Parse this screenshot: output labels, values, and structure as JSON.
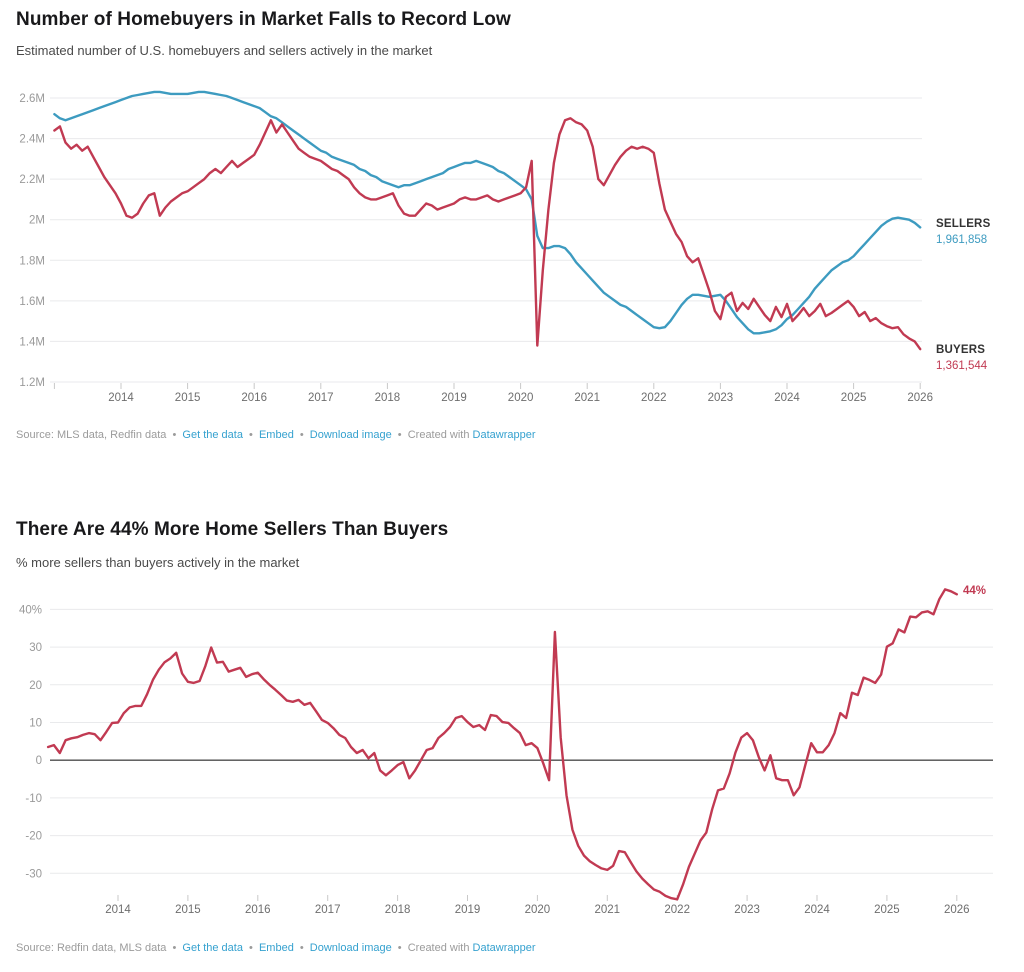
{
  "colors": {
    "sellers_line": "#3d9bc0",
    "buyers_line": "#c13a52",
    "grid": "#e9eaec",
    "zero_axis": "#4d4d4d",
    "axis_tick": "#c9c9c9",
    "y_label": "#9a9a9a",
    "x_label": "#6e6e6e",
    "link_blue": "#35a1cf",
    "title_text": "#19191b",
    "subtitle_text": "#4a4a4a"
  },
  "footers": {
    "sep": "•",
    "chart1": {
      "source": "Source: MLS data, Redfin data",
      "get_data": "Get the data",
      "embed": "Embed",
      "download": "Download image",
      "created_with": "Created with",
      "brand": "Datawrapper"
    },
    "chart2": {
      "source": "Source: Redfin data, MLS data",
      "get_data": "Get the data",
      "embed": "Embed",
      "download": "Download image",
      "created_with": "Created with",
      "brand": "Datawrapper"
    }
  },
  "chart_data": [
    {
      "type": "line",
      "title": "Number of Homebuyers in Market Falls to Record Low",
      "subtitle": "Estimated number of U.S. homebuyers and sellers actively in the market",
      "x_start": 2013.0,
      "x_step_years": 0.08333,
      "xlim": [
        2013.0,
        2026.05
      ],
      "ylim": [
        1.2,
        2.6
      ],
      "grid": true,
      "x_tick_years": [
        2013,
        2014,
        2015,
        2016,
        2017,
        2018,
        2019,
        2020,
        2021,
        2022,
        2023,
        2024,
        2025,
        2026
      ],
      "x_label_years": [
        2014,
        2015,
        2016,
        2017,
        2018,
        2019,
        2020,
        2021,
        2022,
        2023,
        2024,
        2025,
        2026
      ],
      "y_ticks": [
        {
          "value": 2.6,
          "label": "2.6M"
        },
        {
          "value": 2.4,
          "label": "2.4M"
        },
        {
          "value": 2.2,
          "label": "2.2M"
        },
        {
          "value": 2.0,
          "label": "2M"
        },
        {
          "value": 1.8,
          "label": "1.8M"
        },
        {
          "value": 1.6,
          "label": "1.6M"
        },
        {
          "value": 1.4,
          "label": "1.4M"
        },
        {
          "value": 1.2,
          "label": "1.2M"
        }
      ],
      "unit": "millions of people",
      "series": [
        {
          "id": "sellers",
          "name": "SELLERS",
          "color": "#3d9bc0",
          "end_label": "1,961,858",
          "values": [
            2.52,
            2.5,
            2.49,
            2.5,
            2.51,
            2.52,
            2.53,
            2.54,
            2.55,
            2.56,
            2.57,
            2.58,
            2.59,
            2.6,
            2.61,
            2.615,
            2.62,
            2.625,
            2.63,
            2.63,
            2.625,
            2.62,
            2.62,
            2.62,
            2.62,
            2.625,
            2.63,
            2.63,
            2.625,
            2.62,
            2.615,
            2.61,
            2.6,
            2.59,
            2.58,
            2.57,
            2.56,
            2.55,
            2.53,
            2.51,
            2.5,
            2.48,
            2.46,
            2.44,
            2.42,
            2.4,
            2.38,
            2.36,
            2.34,
            2.33,
            2.31,
            2.3,
            2.29,
            2.28,
            2.27,
            2.25,
            2.24,
            2.22,
            2.21,
            2.19,
            2.18,
            2.17,
            2.16,
            2.17,
            2.17,
            2.18,
            2.19,
            2.2,
            2.21,
            2.22,
            2.23,
            2.25,
            2.26,
            2.27,
            2.28,
            2.28,
            2.29,
            2.28,
            2.27,
            2.26,
            2.24,
            2.23,
            2.21,
            2.19,
            2.17,
            2.15,
            2.1,
            1.92,
            1.86,
            1.86,
            1.87,
            1.87,
            1.86,
            1.83,
            1.79,
            1.76,
            1.73,
            1.7,
            1.67,
            1.64,
            1.62,
            1.6,
            1.58,
            1.57,
            1.55,
            1.53,
            1.51,
            1.49,
            1.47,
            1.465,
            1.47,
            1.5,
            1.54,
            1.58,
            1.61,
            1.63,
            1.63,
            1.625,
            1.62,
            1.625,
            1.63,
            1.6,
            1.56,
            1.52,
            1.49,
            1.46,
            1.44,
            1.44,
            1.445,
            1.45,
            1.46,
            1.48,
            1.51,
            1.53,
            1.56,
            1.59,
            1.62,
            1.66,
            1.69,
            1.72,
            1.75,
            1.77,
            1.79,
            1.8,
            1.82,
            1.85,
            1.88,
            1.91,
            1.94,
            1.97,
            1.99,
            2.005,
            2.01,
            2.005,
            2.0,
            1.985,
            1.962
          ]
        },
        {
          "id": "buyers",
          "name": "BUYERS",
          "color": "#c13a52",
          "end_label": "1,361,544",
          "values": [
            2.44,
            2.46,
            2.38,
            2.35,
            2.37,
            2.34,
            2.36,
            2.31,
            2.26,
            2.21,
            2.17,
            2.13,
            2.08,
            2.02,
            2.01,
            2.03,
            2.08,
            2.12,
            2.13,
            2.02,
            2.06,
            2.09,
            2.11,
            2.13,
            2.14,
            2.16,
            2.18,
            2.2,
            2.23,
            2.25,
            2.23,
            2.26,
            2.29,
            2.26,
            2.28,
            2.3,
            2.32,
            2.37,
            2.43,
            2.49,
            2.43,
            2.47,
            2.43,
            2.39,
            2.35,
            2.33,
            2.31,
            2.3,
            2.29,
            2.27,
            2.25,
            2.24,
            2.22,
            2.2,
            2.16,
            2.13,
            2.11,
            2.1,
            2.1,
            2.11,
            2.12,
            2.13,
            2.07,
            2.03,
            2.02,
            2.02,
            2.05,
            2.08,
            2.07,
            2.05,
            2.06,
            2.07,
            2.08,
            2.1,
            2.11,
            2.1,
            2.1,
            2.11,
            2.12,
            2.1,
            2.09,
            2.1,
            2.11,
            2.12,
            2.13,
            2.16,
            2.29,
            1.38,
            1.75,
            2.05,
            2.28,
            2.42,
            2.49,
            2.5,
            2.48,
            2.47,
            2.44,
            2.36,
            2.2,
            2.17,
            2.22,
            2.27,
            2.31,
            2.34,
            2.36,
            2.35,
            2.36,
            2.35,
            2.33,
            2.18,
            2.05,
            1.99,
            1.93,
            1.89,
            1.82,
            1.79,
            1.81,
            1.73,
            1.65,
            1.55,
            1.51,
            1.62,
            1.64,
            1.55,
            1.59,
            1.56,
            1.61,
            1.57,
            1.53,
            1.5,
            1.57,
            1.52,
            1.585,
            1.5,
            1.53,
            1.565,
            1.525,
            1.55,
            1.585,
            1.525,
            1.54,
            1.56,
            1.58,
            1.6,
            1.57,
            1.525,
            1.545,
            1.5,
            1.515,
            1.49,
            1.475,
            1.465,
            1.47,
            1.435,
            1.415,
            1.4,
            1.362
          ]
        }
      ]
    },
    {
      "type": "line",
      "title": "There Are 44% More Home Sellers Than Buyers",
      "subtitle": "% more sellers than buyers actively in the market",
      "x_start": 2013.0,
      "x_step_years": 0.08333,
      "xlim": [
        2013.0,
        2026.0
      ],
      "ylim": [
        -37,
        46
      ],
      "grid": true,
      "zero_axis": true,
      "annotation": "44%",
      "x_tick_years": [
        2014,
        2015,
        2016,
        2017,
        2018,
        2019,
        2020,
        2021,
        2022,
        2023,
        2024,
        2025,
        2026
      ],
      "x_label_years": [
        2014,
        2015,
        2016,
        2017,
        2018,
        2019,
        2020,
        2021,
        2022,
        2023,
        2024,
        2025,
        2026
      ],
      "y_ticks": [
        {
          "value": 40,
          "label": "40%"
        },
        {
          "value": 30,
          "label": "30"
        },
        {
          "value": 20,
          "label": "20"
        },
        {
          "value": 10,
          "label": "10"
        },
        {
          "value": 0,
          "label": "0"
        },
        {
          "value": -10,
          "label": "-10"
        },
        {
          "value": -20,
          "label": "-20"
        },
        {
          "value": -30,
          "label": "-30"
        }
      ],
      "unit": "percent",
      "series": [
        {
          "id": "pct-more-sellers",
          "name": "% more sellers than buyers",
          "color": "#c13a52",
          "end_label": "44%",
          "values": [
            3.5,
            4,
            1.9,
            5.3,
            5.8,
            6.1,
            6.7,
            7.2,
            6.9,
            5.3,
            7.5,
            9.9,
            10,
            12.5,
            14,
            14.4,
            14.4,
            17.5,
            21.3,
            24,
            26,
            27,
            28.5,
            23,
            20.8,
            20.5,
            21,
            25,
            29.9,
            25.9,
            26.1,
            23.5,
            24,
            24.5,
            22.1,
            22.8,
            23.2,
            21.5,
            20,
            18.7,
            17.3,
            15.8,
            15.5,
            16,
            14.7,
            15.2,
            13,
            10.7,
            9.9,
            8.5,
            6.7,
            5.9,
            3.5,
            1.9,
            2.7,
            0.5,
            1.9,
            -2.7,
            -4,
            -2.7,
            -1.3,
            -0.5,
            -4.8,
            -2.7,
            0,
            2.7,
            3.2,
            5.9,
            7.2,
            8.8,
            11.2,
            11.7,
            10.1,
            8.8,
            9.3,
            8,
            12,
            11.7,
            10.1,
            9.9,
            8.5,
            7.2,
            4,
            4.5,
            3.2,
            -0.8,
            -5.3,
            34,
            6,
            -9.3,
            -18.4,
            -22.7,
            -25.3,
            -26.8,
            -27.8,
            -28.7,
            -29.1,
            -28,
            -24.1,
            -24.4,
            -27,
            -29.5,
            -31.4,
            -32.9,
            -34.3,
            -34.9,
            -36,
            -36.6,
            -36.9,
            -33,
            -28.3,
            -24.8,
            -21.3,
            -19.2,
            -13,
            -8,
            -7.5,
            -3.5,
            2,
            6,
            7.2,
            5.3,
            0.8,
            -2.7,
            1.3,
            -4.8,
            -5.3,
            -5.3,
            -9.3,
            -7.2,
            -1.3,
            4.5,
            2.1,
            2.1,
            4,
            7.2,
            12.5,
            11.2,
            17.9,
            17.3,
            21.9,
            21.3,
            20.5,
            22.7,
            30.1,
            31,
            34.7,
            33.9,
            38.1,
            37.9,
            39.2,
            39.5,
            38.7,
            42.7,
            45.3,
            44.8,
            44
          ]
        }
      ]
    }
  ]
}
